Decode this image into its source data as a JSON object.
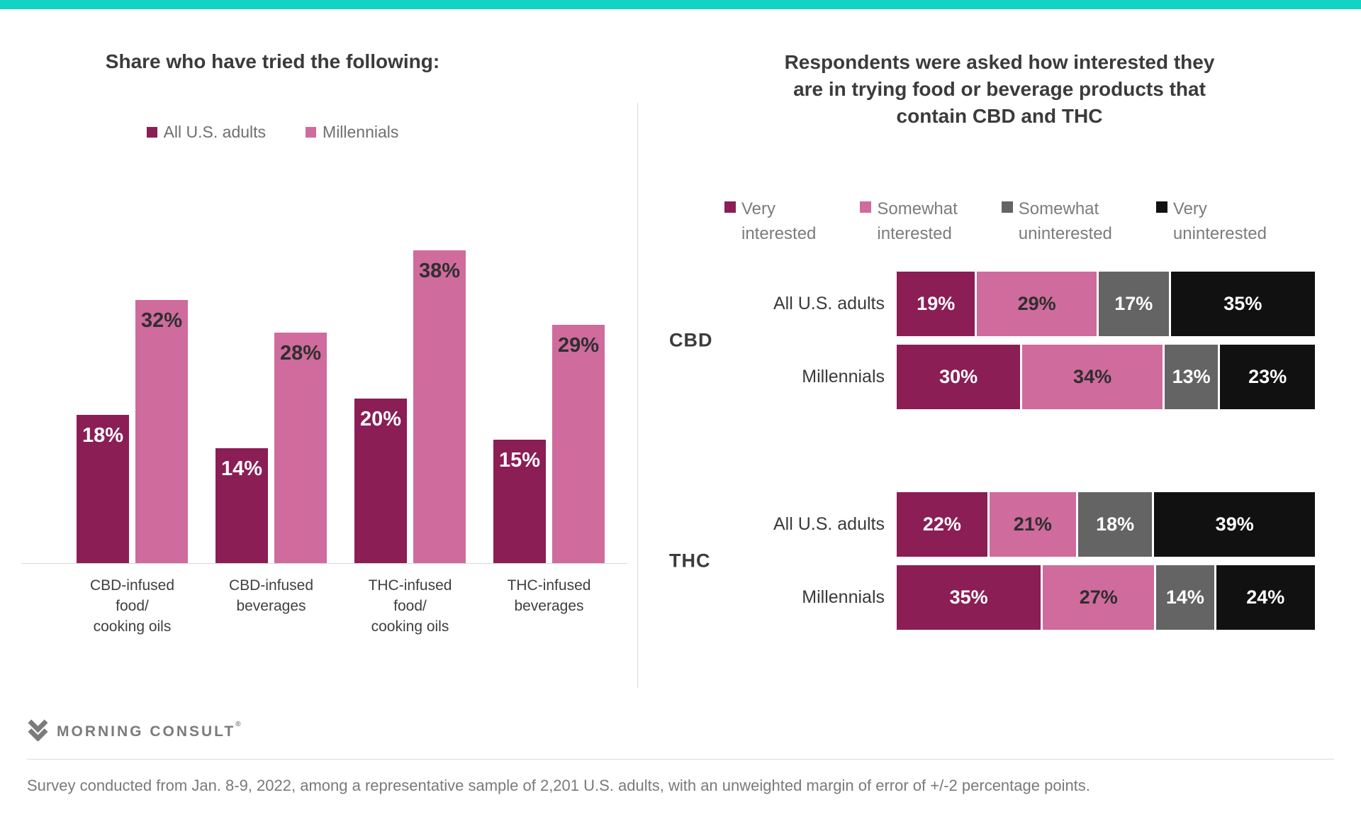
{
  "chart_data": [
    {
      "type": "bar",
      "title": "Share who have tried the following:",
      "categories": [
        [
          "CBD-infused",
          "food/",
          "cooking oils"
        ],
        [
          "CBD-infused",
          "beverages"
        ],
        [
          "THC-infused",
          "food/",
          "cooking oils"
        ],
        [
          "THC-infused",
          "beverages"
        ]
      ],
      "series": [
        {
          "name": "All U.S. adults",
          "color": "#8a1e55",
          "label_color": "#ffffff",
          "values": [
            18,
            14,
            20,
            15
          ]
        },
        {
          "name": "Millennials",
          "color": "#cf6b9d",
          "label_color": "#2f2f2f",
          "values": [
            32,
            28,
            38,
            29
          ]
        }
      ],
      "value_suffix": "%",
      "ylim": [
        0,
        40
      ],
      "grid": false,
      "legend_position": "top"
    },
    {
      "type": "stacked-bar-horizontal",
      "title": "Respondents were asked how interested they are in trying food or beverage products that contain CBD and THC",
      "title_lines": [
        "Respondents were asked how interested they",
        "are in trying food or beverage products that",
        "contain CBD and THC"
      ],
      "legend": [
        {
          "lines": [
            "Very",
            "interested"
          ],
          "color": "#8a1e55"
        },
        {
          "lines": [
            "Somewhat",
            "interested"
          ],
          "color": "#cf6b9d"
        },
        {
          "lines": [
            "Somewhat",
            "uninterested"
          ],
          "color": "#646464"
        },
        {
          "lines": [
            "Very",
            "uninterested"
          ],
          "color": "#111111"
        }
      ],
      "segment_colors": [
        "#8a1e55",
        "#cf6b9d",
        "#646464",
        "#111111"
      ],
      "segment_label_colors": [
        "#ffffff",
        "#2e2e2e",
        "#ffffff",
        "#ffffff"
      ],
      "groups": [
        {
          "name": "CBD",
          "rows": [
            {
              "label": "All U.S. adults",
              "values": [
                19,
                29,
                17,
                35
              ]
            },
            {
              "label": "Millennials",
              "values": [
                30,
                34,
                13,
                23
              ]
            }
          ]
        },
        {
          "name": "THC",
          "rows": [
            {
              "label": "All U.S. adults",
              "values": [
                22,
                21,
                18,
                39
              ]
            },
            {
              "label": "Millennials",
              "values": [
                35,
                27,
                14,
                24
              ]
            }
          ]
        }
      ],
      "value_suffix": "%",
      "xlim": [
        0,
        100
      ],
      "legend_position": "top"
    }
  ],
  "branding": {
    "logo_text": "MORNING CONSULT",
    "registered_mark": "®",
    "logo_color": "#7b7b7b",
    "accent_bar_color": "#11d3c6"
  },
  "footer": {
    "note": "Survey conducted from Jan. 8-9, 2022, among a representative sample of 2,201 U.S. adults, with an unweighted margin of error of +/-2 percentage points."
  }
}
